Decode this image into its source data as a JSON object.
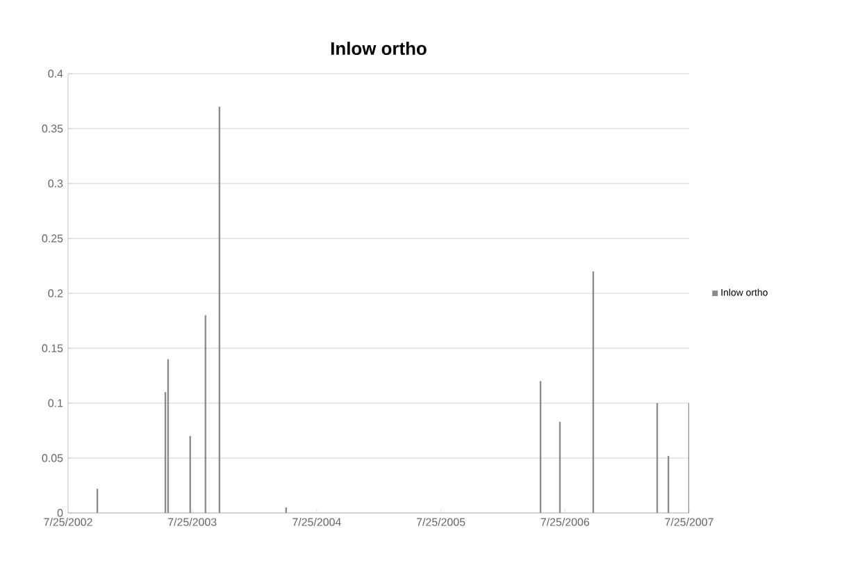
{
  "chart_data": {
    "type": "bar",
    "title": "Inlow ortho",
    "x": [
      "2002-10-19",
      "2003-05-07",
      "2003-05-15",
      "2003-07-19",
      "2003-09-02",
      "2003-10-13",
      "2004-04-26",
      "2006-05-14",
      "2006-07-10",
      "2006-10-16",
      "2007-04-22",
      "2007-05-25",
      "2007-07-25"
    ],
    "series": [
      {
        "name": "Inlow ortho",
        "color": "#8c8c8c",
        "values": [
          0.022,
          0.11,
          0.14,
          0.07,
          0.18,
          0.37,
          0.005,
          0.12,
          0.083,
          0.22,
          0.1,
          0.052,
          0.1
        ]
      }
    ],
    "xlim": [
      "2002-07-25",
      "2007-07-25"
    ],
    "xticks": [
      {
        "value": "2002-07-25",
        "label": "7/25/2002"
      },
      {
        "value": "2003-07-25",
        "label": "7/25/2003"
      },
      {
        "value": "2004-07-25",
        "label": "7/25/2004"
      },
      {
        "value": "2005-07-25",
        "label": "7/25/2005"
      },
      {
        "value": "2006-07-25",
        "label": "7/25/2006"
      },
      {
        "value": "2007-07-25",
        "label": "7/25/2007"
      }
    ],
    "ylim": [
      0,
      0.4
    ],
    "yticks": [
      0,
      0.05,
      0.1,
      0.15,
      0.2,
      0.25,
      0.3,
      0.35,
      0.4
    ],
    "grid": "y",
    "legend": "right"
  }
}
